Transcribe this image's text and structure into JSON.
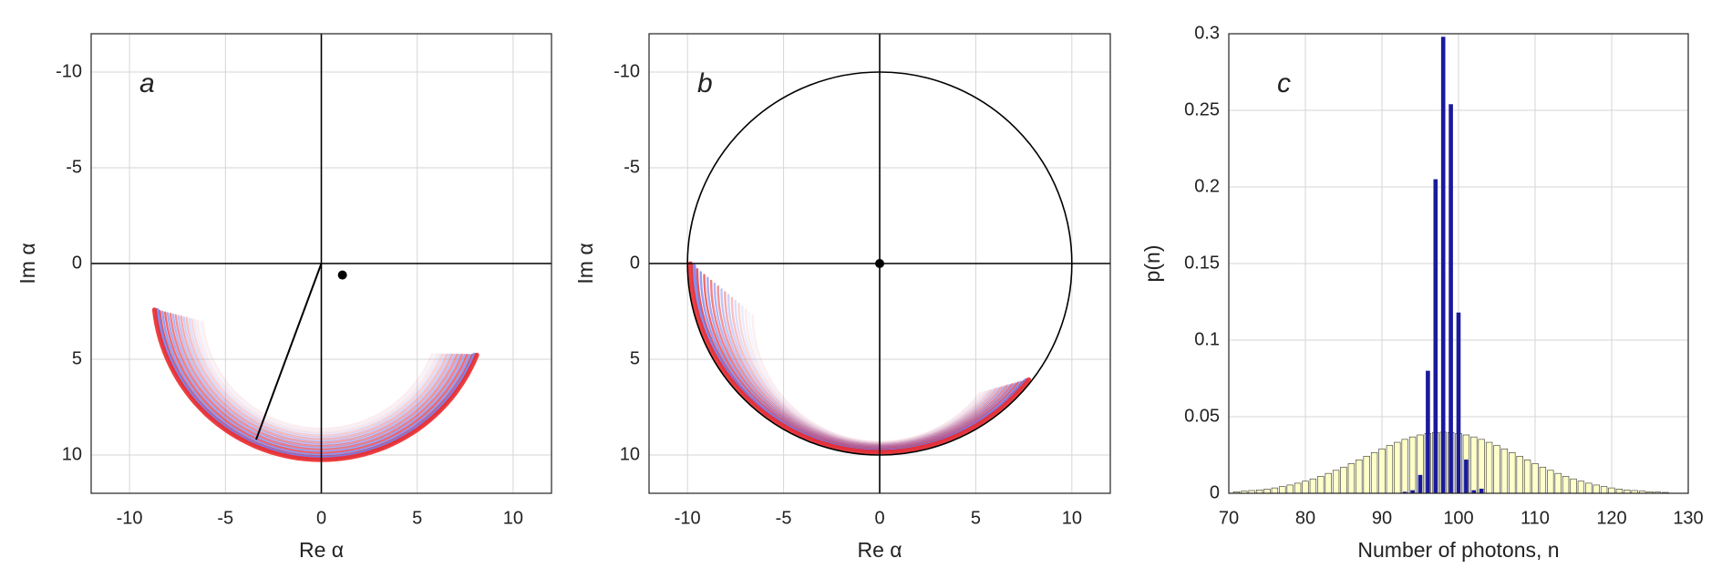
{
  "chart_data": [
    {
      "type": "scatter",
      "label": "a",
      "xlabel": "Re α",
      "ylabel": "Im α",
      "xlim": [
        -12,
        12
      ],
      "ylim": [
        -12,
        12
      ],
      "y_reversed": true,
      "xticks": [
        -10,
        -5,
        0,
        5,
        10
      ],
      "yticks": [
        -10,
        -5,
        0,
        5,
        10
      ],
      "grid": true,
      "marker": {
        "x": 1.1,
        "y": 0.6
      },
      "segment": {
        "x": [
          0,
          -3.4
        ],
        "y": [
          0,
          9.2
        ]
      }
    },
    {
      "type": "scatter",
      "label": "b",
      "xlabel": "Re α",
      "ylabel": "Im α",
      "xlim": [
        -12,
        12
      ],
      "ylim": [
        -12,
        12
      ],
      "y_reversed": true,
      "xticks": [
        -10,
        -5,
        0,
        5,
        10
      ],
      "yticks": [
        -10,
        -5,
        0,
        5,
        10
      ],
      "grid": true,
      "marker": {
        "x": 0,
        "y": 0
      },
      "circle": {
        "cx": 0,
        "cy": 0,
        "r": 10
      }
    },
    {
      "type": "bar",
      "label": "c",
      "xlabel": "Number of photons, n",
      "ylabel": "p(n)",
      "xlim": [
        70,
        130
      ],
      "ylim": [
        0,
        0.3
      ],
      "xticks": [
        70,
        80,
        90,
        100,
        110,
        120,
        130
      ],
      "yticks": [
        0,
        0.05,
        0.1,
        0.15,
        0.2,
        0.25,
        0.3
      ],
      "grid": true,
      "series": [
        {
          "color": "#ffffc8",
          "x": [
            71,
            72,
            73,
            74,
            75,
            76,
            77,
            78,
            79,
            80,
            81,
            82,
            83,
            84,
            85,
            86,
            87,
            88,
            89,
            90,
            91,
            92,
            93,
            94,
            95,
            96,
            97,
            98,
            99,
            100,
            101,
            102,
            103,
            104,
            105,
            106,
            107,
            108,
            109,
            110,
            111,
            112,
            113,
            114,
            115,
            116,
            117,
            118,
            119,
            120,
            121,
            122,
            123,
            124,
            125,
            126,
            127
          ],
          "values": [
            0.001,
            0.0014,
            0.0018,
            0.0022,
            0.0028,
            0.0035,
            0.0044,
            0.0054,
            0.0066,
            0.0079,
            0.0094,
            0.0111,
            0.013,
            0.015,
            0.0171,
            0.0194,
            0.0218,
            0.0242,
            0.0266,
            0.029,
            0.0312,
            0.0333,
            0.0352,
            0.0368,
            0.0381,
            0.0391,
            0.0397,
            0.0399,
            0.0397,
            0.0391,
            0.0381,
            0.0368,
            0.0352,
            0.0333,
            0.0312,
            0.029,
            0.0266,
            0.0242,
            0.0218,
            0.0194,
            0.0171,
            0.015,
            0.013,
            0.0111,
            0.0094,
            0.0079,
            0.0066,
            0.0054,
            0.0044,
            0.0035,
            0.0028,
            0.0022,
            0.0018,
            0.0014,
            0.001,
            0.0008,
            0.0006
          ]
        },
        {
          "color": "#1a1a9c",
          "x": [
            93,
            94,
            95,
            96,
            97,
            98,
            99,
            100,
            101,
            102,
            103
          ],
          "values": [
            0.001,
            0.002,
            0.012,
            0.08,
            0.205,
            0.298,
            0.254,
            0.118,
            0.022,
            0.002,
            0.003
          ]
        }
      ]
    }
  ]
}
